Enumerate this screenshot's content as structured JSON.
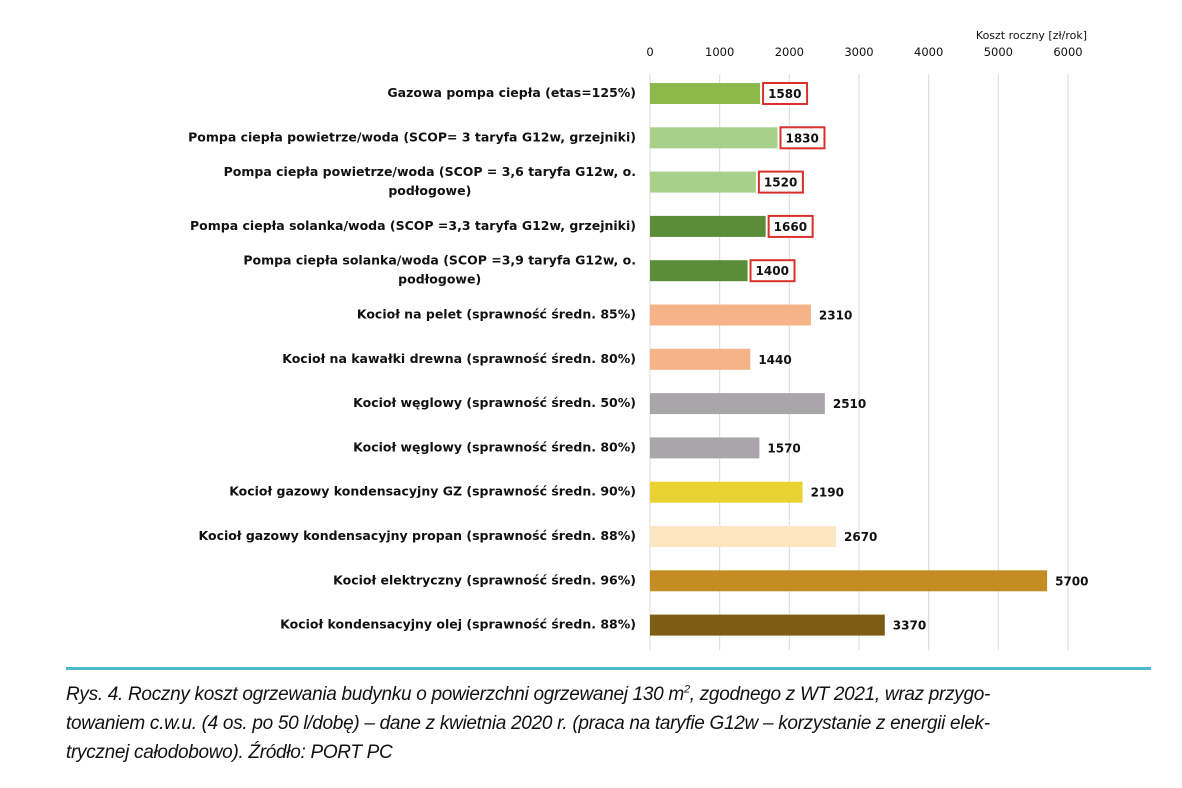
{
  "chart_data": {
    "type": "bar",
    "orientation": "horizontal",
    "xlabel": "Koszt roczny [zł/rok]",
    "xlim": [
      0,
      6000
    ],
    "xticks": [
      "0",
      "1000",
      "2000",
      "3000",
      "4000",
      "5000",
      "6000"
    ],
    "grid": true,
    "categories": [
      "Gazowa pompa ciepła (etas=125%)",
      "Pompa ciepła powietrze/woda (SCOP= 3 taryfa G12w, grzejniki)",
      "Pompa ciepła powietrze/woda (SCOP = 3,6 taryfa G12w, o.|podłogowe)",
      "Pompa ciepła solanka/woda (SCOP =3,3 taryfa G12w, grzejniki)",
      "Pompa ciepła solanka/woda (SCOP =3,9 taryfa G12w, o.|podłogowe)",
      "Kocioł na pelet (sprawność średn. 85%)",
      "Kocioł na kawałki drewna (sprawność średn. 80%)",
      "Kocioł węglowy (sprawność średn. 50%)",
      "Kocioł węglowy (sprawność średn. 80%)",
      "Kocioł gazowy kondensacyjny GZ (sprawność średn. 90%)",
      "Kocioł gazowy kondensacyjny propan (sprawność średn. 88%)",
      "Kocioł elektryczny (sprawność średn. 96%)",
      "Kocioł  kondensacyjny olej (sprawność średn. 88%)"
    ],
    "values": [
      1580,
      1830,
      1520,
      1660,
      1400,
      2310,
      1440,
      2510,
      1570,
      2190,
      2670,
      5700,
      3370
    ],
    "colors": [
      "#8db84a",
      "#a9d08a",
      "#a9d08a",
      "#5b8c37",
      "#5b8c37",
      "#f5b387",
      "#f5b387",
      "#a8a6a8",
      "#a8a6a8",
      "#e9d332",
      "#fce7c2",
      "#c48d24",
      "#7d5c14"
    ],
    "highlighted_values": [
      true,
      true,
      true,
      true,
      true,
      false,
      false,
      false,
      false,
      false,
      false,
      false,
      false
    ],
    "highlight_color": "#d9302a"
  },
  "caption": {
    "line1a": "Rys. 4. Roczny koszt ogrzewania budynku o powierzchni ogrzewanej 130 m",
    "sup": "2",
    "line1b": ", zgodnego z WT 2021, wraz przygo-",
    "line2": "towaniem c.w.u. (4 os. po 50 l/dobę) – dane z kwietnia 2020 r. (praca na taryfie G12w – korzystanie z energii elek-",
    "line3": "trycznej całodobowo). Źródło: PORT PC"
  },
  "colors": {
    "rule": "#4fb8d1"
  }
}
